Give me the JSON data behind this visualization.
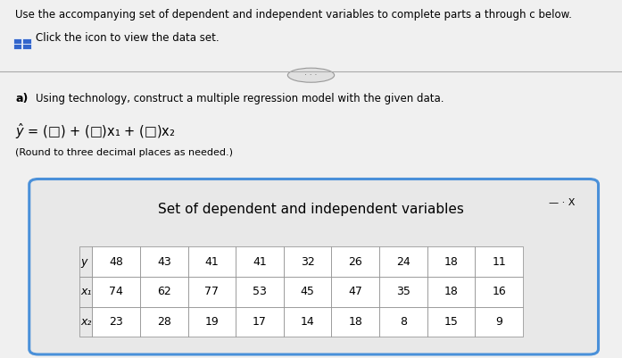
{
  "title_text": "Use the accompanying set of dependent and independent variables to complete parts a through c below.",
  "click_text": "Click the icon to view the data set.",
  "part_a_label": "a)",
  "part_a_text": "Using technology, construct a multiple regression model with the given data.",
  "round_text": "(Round to three decimal places as needed.)",
  "popup_title": "Set of dependent and independent variables",
  "table_row_labels": [
    "y",
    "x₁",
    "x₂"
  ],
  "table_data": [
    [
      48,
      43,
      41,
      41,
      32,
      26,
      24,
      18,
      11
    ],
    [
      74,
      62,
      77,
      53,
      45,
      47,
      35,
      18,
      16
    ],
    [
      23,
      28,
      19,
      17,
      14,
      18,
      8,
      15,
      9
    ]
  ],
  "bg_color": "#f0f0f0",
  "popup_bg": "#e8e8e8",
  "popup_border": "#4a90d9",
  "text_color": "#000000",
  "grid_icon_color": "#3366cc"
}
